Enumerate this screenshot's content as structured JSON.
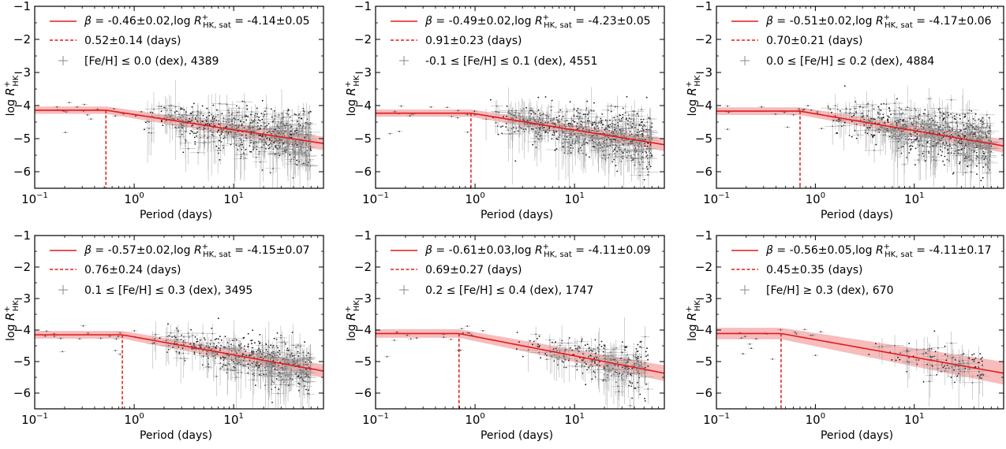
{
  "figure": {
    "rows": 2,
    "cols": 3
  },
  "chart_data": [
    {
      "type": "scatter",
      "xlabel": "Period (days)",
      "ylabel": "log R+HK",
      "xscale": "log",
      "xlim": [
        0.1,
        80
      ],
      "ylim": [
        -6.5,
        -1
      ],
      "yticks": [
        "−1",
        "−2",
        "−3",
        "−4",
        "−5",
        "−6"
      ],
      "xticks": [
        "10−1",
        "100",
        "101"
      ],
      "fit": {
        "beta": -0.46,
        "beta_err": 0.02,
        "log_sat": -4.14,
        "log_sat_err": 0.05,
        "period_break": 0.52,
        "period_break_err": 0.14
      },
      "legend": [
        {
          "kind": "fit",
          "text": "β = -0.46±0.02,log R+HK, sat = -4.14±0.05"
        },
        {
          "kind": "break",
          "text": "0.52±0.14 (days)"
        },
        {
          "kind": "data",
          "text": "[Fe/H] ≤ 0.0 (dex), 4389"
        }
      ],
      "n_stars": 4389,
      "cloud": {
        "xmin": 1.2,
        "xmax": 60,
        "ymean_at1": -4.2,
        "spread": 0.35
      }
    },
    {
      "type": "scatter",
      "xlabel": "Period (days)",
      "ylabel": "log R+HK",
      "xscale": "log",
      "xlim": [
        0.1,
        80
      ],
      "ylim": [
        -6.5,
        -1
      ],
      "yticks": [
        "−1",
        "−2",
        "−3",
        "−4",
        "−5",
        "−6"
      ],
      "xticks": [
        "10−1",
        "100",
        "101"
      ],
      "fit": {
        "beta": -0.49,
        "beta_err": 0.02,
        "log_sat": -4.23,
        "log_sat_err": 0.05,
        "period_break": 0.91,
        "period_break_err": 0.23
      },
      "legend": [
        {
          "kind": "fit",
          "text": "β = -0.49±0.02,log R+HK, sat = -4.23±0.05"
        },
        {
          "kind": "break",
          "text": "0.91±0.23 (days)"
        },
        {
          "kind": "data",
          "text": "-0.1 ≤ [Fe/H] ≤ 0.1 (dex), 4551"
        }
      ],
      "n_stars": 4551,
      "cloud": {
        "xmin": 1.2,
        "xmax": 60,
        "ymean_at1": -4.25,
        "spread": 0.35
      }
    },
    {
      "type": "scatter",
      "xlabel": "Period (days)",
      "ylabel": "log R+HK",
      "xscale": "log",
      "xlim": [
        0.1,
        80
      ],
      "ylim": [
        -6.5,
        -1
      ],
      "yticks": [
        "−1",
        "−2",
        "−3",
        "−4",
        "−5",
        "−6"
      ],
      "xticks": [
        "10−1",
        "100",
        "101"
      ],
      "fit": {
        "beta": -0.51,
        "beta_err": 0.02,
        "log_sat": -4.17,
        "log_sat_err": 0.06,
        "period_break": 0.7,
        "period_break_err": 0.21
      },
      "legend": [
        {
          "kind": "fit",
          "text": "β = -0.51±0.02,log R+HK, sat = -4.17±0.06"
        },
        {
          "kind": "break",
          "text": "0.70±0.21 (days)"
        },
        {
          "kind": "data",
          "text": "0.0 ≤ [Fe/H] ≤ 0.2 (dex), 4884"
        }
      ],
      "n_stars": 4884,
      "cloud": {
        "xmin": 1.2,
        "xmax": 60,
        "ymean_at1": -4.2,
        "spread": 0.35
      }
    },
    {
      "type": "scatter",
      "xlabel": "Period (days)",
      "ylabel": "log R+HK",
      "xscale": "log",
      "xlim": [
        0.1,
        80
      ],
      "ylim": [
        -6.5,
        -1
      ],
      "yticks": [
        "−1",
        "−2",
        "−3",
        "−4",
        "−5",
        "−6"
      ],
      "xticks": [
        "10−1",
        "100",
        "101"
      ],
      "fit": {
        "beta": -0.57,
        "beta_err": 0.02,
        "log_sat": -4.15,
        "log_sat_err": 0.07,
        "period_break": 0.76,
        "period_break_err": 0.24
      },
      "legend": [
        {
          "kind": "fit",
          "text": "β = -0.57±0.02,log R+HK, sat = -4.15±0.07"
        },
        {
          "kind": "break",
          "text": "0.76±0.24 (days)"
        },
        {
          "kind": "data",
          "text": "0.1 ≤ [Fe/H] ≤ 0.3 (dex), 3495"
        }
      ],
      "n_stars": 3495,
      "cloud": {
        "xmin": 1.5,
        "xmax": 60,
        "ymean_at1": -4.2,
        "spread": 0.33
      }
    },
    {
      "type": "scatter",
      "xlabel": "Period (days)",
      "ylabel": "log R+HK",
      "xscale": "log",
      "xlim": [
        0.1,
        80
      ],
      "ylim": [
        -6.5,
        -1
      ],
      "yticks": [
        "−1",
        "−2",
        "−3",
        "−4",
        "−5",
        "−6"
      ],
      "xticks": [
        "10−1",
        "100",
        "101"
      ],
      "fit": {
        "beta": -0.61,
        "beta_err": 0.03,
        "log_sat": -4.11,
        "log_sat_err": 0.09,
        "period_break": 0.69,
        "period_break_err": 0.27
      },
      "legend": [
        {
          "kind": "fit",
          "text": "β = -0.61±0.03,log R+HK, sat = -4.11±0.09"
        },
        {
          "kind": "break",
          "text": "0.69±0.27 (days)"
        },
        {
          "kind": "data",
          "text": "0.2 ≤ [Fe/H] ≤ 0.4 (dex), 1747"
        }
      ],
      "n_stars": 1747,
      "cloud": {
        "xmin": 2.5,
        "xmax": 55,
        "ymean_at1": -4.2,
        "spread": 0.3
      }
    },
    {
      "type": "scatter",
      "xlabel": "Period (days)",
      "ylabel": "log R+HK",
      "xscale": "log",
      "xlim": [
        0.1,
        80
      ],
      "ylim": [
        -6.5,
        -1
      ],
      "yticks": [
        "−1",
        "−2",
        "−3",
        "−4",
        "−5",
        "−6"
      ],
      "xticks": [
        "10−1",
        "100",
        "101"
      ],
      "fit": {
        "beta": -0.56,
        "beta_err": 0.05,
        "log_sat": -4.11,
        "log_sat_err": 0.17,
        "period_break": 0.45,
        "period_break_err": 0.35
      },
      "legend": [
        {
          "kind": "fit",
          "text": "β = -0.56±0.05,log R+HK, sat = -4.11±0.17"
        },
        {
          "kind": "break",
          "text": "0.45±0.35 (days)"
        },
        {
          "kind": "data",
          "text": "[Fe/H] ≥ 0.3 (dex), 670"
        }
      ],
      "n_stars": 670,
      "cloud": {
        "xmin": 3,
        "xmax": 50,
        "ymean_at1": -4.2,
        "spread": 0.25
      }
    }
  ],
  "colors": {
    "fit_line": "#e31a1c",
    "fit_band": "#f4a5a5",
    "points": "#111111",
    "errorbars": "#9a9a9a",
    "axes": "#000000"
  }
}
